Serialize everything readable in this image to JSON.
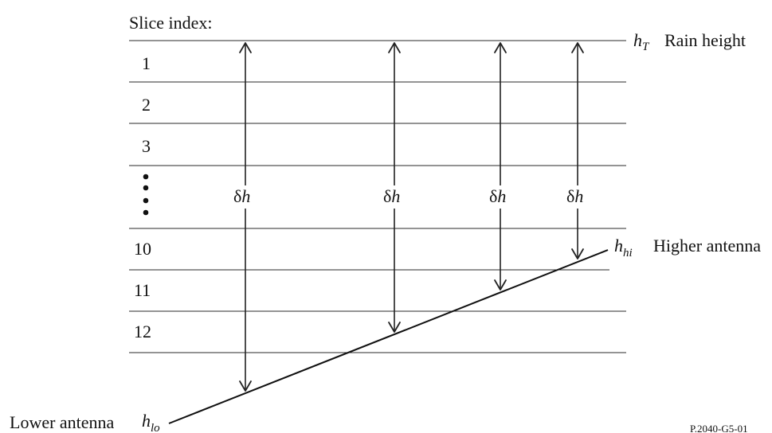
{
  "diagram": {
    "slice_index_label": "Slice index:",
    "slices": [
      "1",
      "2",
      "3",
      "10",
      "11",
      "12"
    ],
    "ellipsis": "⋮",
    "rain_height": {
      "symbol": "h",
      "subscript": "T",
      "label": "Rain height"
    },
    "higher_antenna": {
      "symbol": "h",
      "subscript": "hi",
      "label": "Higher antenna"
    },
    "lower_antenna": {
      "symbol": "h",
      "subscript": "lo",
      "label": "Lower antenna"
    },
    "delta_h": {
      "greek": "δ",
      "symbol": "h"
    },
    "figure_id": "P.2040-G5-01"
  }
}
